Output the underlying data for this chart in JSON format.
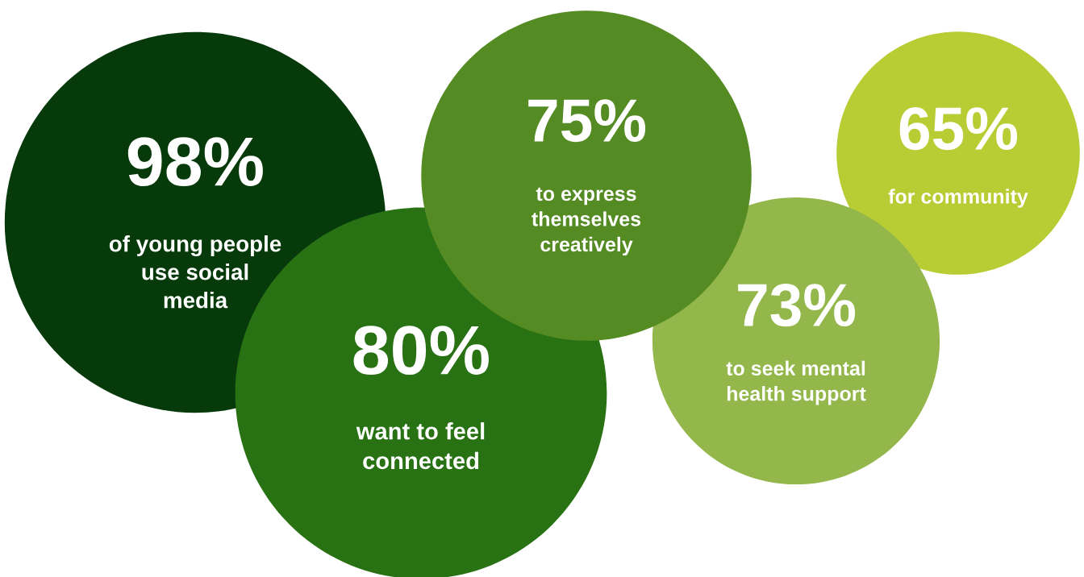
{
  "chart_data": {
    "type": "other",
    "categories": [
      "of young people\nuse social\nmedia",
      "want to feel\nconnected",
      "to express\nthemselves\ncreatively",
      "to seek mental\nhealth support",
      "for community"
    ],
    "values": [
      98,
      80,
      75,
      73,
      65
    ],
    "value_labels": [
      "98%",
      "80%",
      "75%",
      "73%",
      "65%"
    ],
    "colors": [
      "#063a0a",
      "#287214",
      "#558b23",
      "#93b74a",
      "#b8cc34"
    ]
  }
}
